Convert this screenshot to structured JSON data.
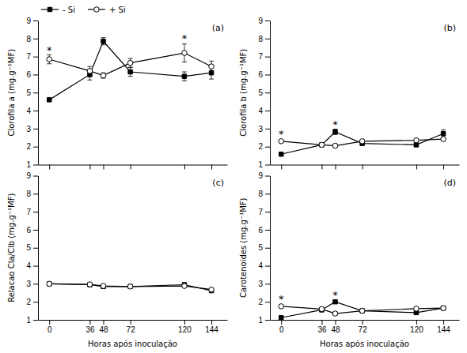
{
  "chart_data": [
    {
      "type": "line",
      "title": "(a)",
      "ylabel": "Clorofila a (mg.g⁻¹MF)",
      "x": [
        0,
        36,
        48,
        72,
        120,
        144
      ],
      "series": [
        {
          "name": "- Si",
          "color": "#000000",
          "marker": "square",
          "line_style": "solid",
          "values": [
            4.6,
            6.0,
            7.85,
            6.15,
            5.9,
            6.1
          ],
          "errors": [
            0.0,
            0.3,
            0.2,
            0.25,
            0.25,
            0.35
          ]
        },
        {
          "name": "+ Si",
          "color": "#000000",
          "marker": "circle-open",
          "line_style": "solid",
          "values": [
            6.85,
            6.2,
            5.95,
            6.65,
            7.2,
            6.45
          ],
          "errors": [
            0.25,
            0.25,
            0.15,
            0.25,
            0.5,
            0.3
          ]
        }
      ],
      "annotations": [
        {
          "text": "*",
          "x": 0,
          "y": 7.15
        },
        {
          "text": "*",
          "x": 120,
          "y": 7.8
        }
      ],
      "xlim": [
        -10,
        158
      ],
      "xticks": [
        0,
        36,
        48,
        72,
        120,
        144
      ],
      "ylim": [
        1,
        9
      ],
      "yticks": [
        1,
        2,
        3,
        4,
        5,
        6,
        7,
        8,
        9
      ],
      "tick_labels": "y",
      "grid": false,
      "legend": "upper left"
    },
    {
      "type": "line",
      "title": "(b)",
      "ylabel": "Clorofila b (mg.g⁻¹MF)",
      "x": [
        0,
        36,
        48,
        72,
        120,
        144
      ],
      "series": [
        {
          "color": "#000000",
          "marker": "square",
          "line_style": "solid",
          "values": [
            1.58,
            2.1,
            2.82,
            2.18,
            2.1,
            2.72
          ],
          "errors": [
            0.0,
            0.08,
            0.15,
            0.08,
            0.08,
            0.22
          ]
        },
        {
          "color": "#000000",
          "marker": "circle-open",
          "line_style": "solid",
          "values": [
            2.3,
            2.1,
            2.05,
            2.3,
            2.35,
            2.42
          ],
          "errors": [
            0.08,
            0.08,
            0.08,
            0.08,
            0.08,
            0.08
          ]
        }
      ],
      "annotations": [
        {
          "text": "*",
          "x": 0,
          "y": 2.5
        },
        {
          "text": "*",
          "x": 48,
          "y": 3.05
        }
      ],
      "xlim": [
        -10,
        158
      ],
      "xticks": [
        0,
        36,
        48,
        72,
        120,
        144
      ],
      "ylim": [
        1,
        9
      ],
      "yticks": [
        1,
        2,
        3,
        4,
        5,
        6,
        7,
        8,
        9
      ],
      "tick_labels": "y",
      "grid": false
    },
    {
      "type": "line",
      "title": "(c)",
      "ylabel": "Relacao Cla/Clb (mg.g⁻¹MF)",
      "xlabel": "Horas após inoculação",
      "x": [
        0,
        36,
        48,
        72,
        120,
        144
      ],
      "series": [
        {
          "color": "#000000",
          "marker": "square",
          "line_style": "solid",
          "values": [
            3.0,
            2.95,
            2.85,
            2.85,
            2.95,
            2.62
          ],
          "errors": [
            0.04,
            0.04,
            0.04,
            0.04,
            0.06,
            0.06
          ]
        },
        {
          "color": "#000000",
          "marker": "circle-open",
          "line_style": "solid",
          "values": [
            3.0,
            2.97,
            2.88,
            2.85,
            2.88,
            2.68
          ],
          "errors": [
            0.04,
            0.04,
            0.04,
            0.04,
            0.06,
            0.06
          ]
        }
      ],
      "annotations": [],
      "xlim": [
        -10,
        158
      ],
      "xticks": [
        0,
        36,
        48,
        72,
        120,
        144
      ],
      "ylim": [
        1,
        9
      ],
      "yticks": [
        1,
        2,
        3,
        4,
        5,
        6,
        7,
        8,
        9
      ],
      "grid": false
    },
    {
      "type": "line",
      "title": "(d)",
      "ylabel": "Carotenoides (mg.g⁻¹MF)",
      "xlabel": "Horas após inoculação",
      "x": [
        0,
        36,
        48,
        72,
        120,
        144
      ],
      "series": [
        {
          "color": "#000000",
          "marker": "square",
          "line_style": "solid",
          "values": [
            1.12,
            1.55,
            2.0,
            1.5,
            1.4,
            1.65
          ],
          "errors": [
            0.0,
            0.08,
            0.1,
            0.08,
            0.08,
            0.08
          ]
        },
        {
          "color": "#000000",
          "marker": "circle-open",
          "line_style": "solid",
          "values": [
            1.75,
            1.6,
            1.35,
            1.5,
            1.62,
            1.65
          ],
          "errors": [
            0.08,
            0.08,
            0.08,
            0.08,
            0.08,
            0.08
          ]
        }
      ],
      "annotations": [
        {
          "text": "*",
          "x": 0,
          "y": 1.95
        },
        {
          "text": "*",
          "x": 48,
          "y": 2.18
        }
      ],
      "xlim": [
        -10,
        158
      ],
      "xticks": [
        0,
        36,
        48,
        72,
        120,
        144
      ],
      "ylim": [
        1,
        9
      ],
      "yticks": [
        1,
        2,
        3,
        4,
        5,
        6,
        7,
        8,
        9
      ],
      "grid": false
    }
  ]
}
